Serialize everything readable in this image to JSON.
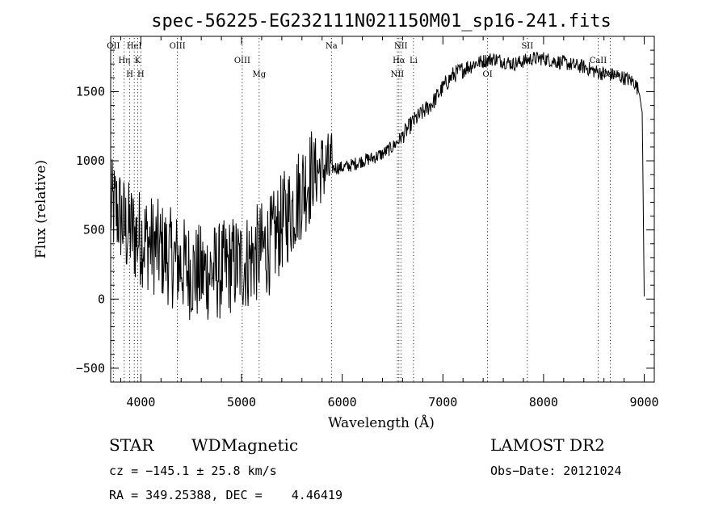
{
  "chart_data": {
    "type": "line",
    "title": "spec-56225-EG232111N021150M01_sp16-241.fits",
    "xlabel": "Wavelength (Å)",
    "ylabel": "Flux (relative)",
    "xlim": [
      3700,
      9100
    ],
    "ylim": [
      -600,
      1900
    ],
    "x_ticks": [
      4000,
      5000,
      6000,
      7000,
      8000,
      9000
    ],
    "y_ticks": [
      -500,
      0,
      500,
      1000,
      1500
    ],
    "grid": false,
    "line_color": "#000000",
    "series": [
      {
        "x": [
          3700,
          3750,
          3800,
          3850,
          3900,
          3950,
          4000,
          4100,
          4200,
          4300,
          4400,
          4500,
          4600,
          4700,
          4800,
          4900,
          5000,
          5100,
          5200,
          5300,
          5400,
          5500,
          5600,
          5700,
          5800,
          5900,
          6000,
          6100,
          6200,
          6300,
          6400,
          6500,
          6600,
          6700,
          6800,
          6900,
          7000,
          7100,
          7200,
          7300,
          7400,
          7500,
          7600,
          7700,
          7800,
          7900,
          8000,
          8100,
          8200,
          8300,
          8400,
          8500,
          8600,
          8700,
          8800,
          8900,
          8950,
          8980,
          9000
        ],
        "y": [
          650,
          650,
          600,
          500,
          500,
          450,
          450,
          400,
          350,
          300,
          250,
          200,
          180,
          200,
          200,
          250,
          250,
          300,
          350,
          400,
          550,
          650,
          800,
          900,
          950,
          950,
          950,
          970,
          1000,
          1020,
          1050,
          1100,
          1180,
          1280,
          1350,
          1420,
          1530,
          1620,
          1660,
          1700,
          1720,
          1740,
          1720,
          1700,
          1720,
          1740,
          1740,
          1720,
          1710,
          1690,
          1680,
          1650,
          1630,
          1620,
          1600,
          1570,
          1500,
          1350,
          20
        ]
      }
    ],
    "line_markers": [
      {
        "label": "OII",
        "x": 3727
      },
      {
        "label": "Hη",
        "x": 3835
      },
      {
        "label": "H",
        "x": 3889
      },
      {
        "label": "HeI",
        "x": 3934
      },
      {
        "label": "K",
        "x": 3968
      },
      {
        "label": "H",
        "x": 4000
      },
      {
        "label": "OIII",
        "x": 4363
      },
      {
        "label": "OIII",
        "x": 5007
      },
      {
        "label": "Mg",
        "x": 5175
      },
      {
        "label": "Na",
        "x": 5893
      },
      {
        "label": "Hα",
        "x": 6563
      },
      {
        "label": "NII",
        "x": 6548
      },
      {
        "label": "NII",
        "x": 6583
      },
      {
        "label": "Li",
        "x": 6708
      },
      {
        "label": "OI",
        "x": 7444
      },
      {
        "label": "SII",
        "x": 7839
      },
      {
        "label": "CaII",
        "x": 8542
      },
      {
        "label": "CaII",
        "x": 8662
      }
    ]
  },
  "info": {
    "object_class": "STAR",
    "subclass": "WDMagnetic",
    "survey": "LAMOST DR2",
    "redshift_line": "cz = −145.1 ± 25.8 km/s",
    "obs_date": "Obs−Date: 20121024",
    "coords": "RA = 349.25388, DEC =    4.46419"
  }
}
